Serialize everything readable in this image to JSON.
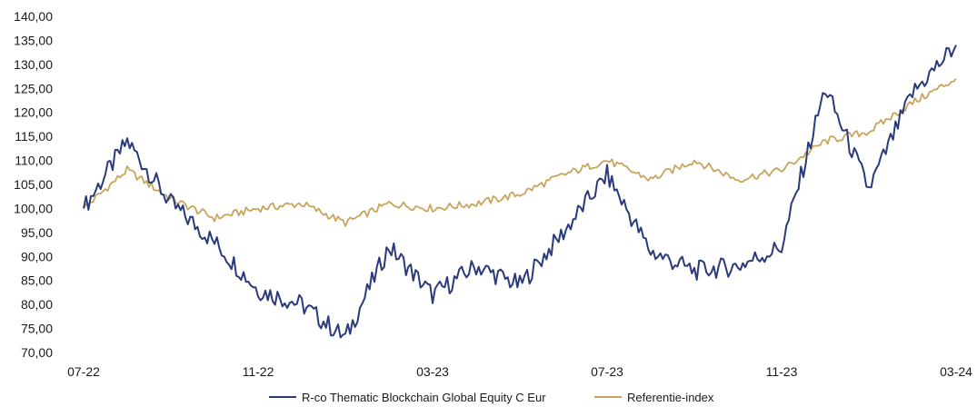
{
  "chart_data": {
    "type": "line",
    "title": "",
    "xlabel": "",
    "ylabel": "",
    "ylim": [
      70,
      140
    ],
    "yticks": [
      "140,00",
      "135,00",
      "130,00",
      "125,00",
      "120,00",
      "115,00",
      "110,00",
      "105,00",
      "100,00",
      "95,00",
      "90,00",
      "85,00",
      "80,00",
      "75,00",
      "70,00"
    ],
    "xticks": [
      "07-22",
      "11-22",
      "03-23",
      "07-23",
      "11-23",
      "03-24"
    ],
    "grid": false,
    "legend_position": "bottom",
    "x": [
      "07-22",
      "08-22",
      "09-22",
      "10-22",
      "11-22",
      "12-22",
      "01-23",
      "02-23",
      "03-23",
      "04-23",
      "05-23",
      "06-23",
      "07-23",
      "08-23",
      "09-23",
      "10-23",
      "11-23",
      "12-23",
      "01-24",
      "02-24",
      "03-24"
    ],
    "series": [
      {
        "name": "R-co Thematic Blockchain Global Equity C Eur",
        "color": "#2b3a7a",
        "values": [
          100,
          114,
          101,
          93,
          83,
          80,
          73,
          92,
          82,
          88,
          84,
          95,
          107,
          91,
          87,
          88,
          92,
          125,
          104,
          124,
          134
        ]
      },
      {
        "name": "Referentie-index",
        "color": "#c9a45c",
        "values": [
          100,
          108,
          102,
          98,
          100,
          101,
          97,
          101,
          100,
          101,
          103,
          107,
          110,
          106,
          110,
          106,
          108,
          114,
          116,
          122,
          127
        ]
      }
    ]
  }
}
